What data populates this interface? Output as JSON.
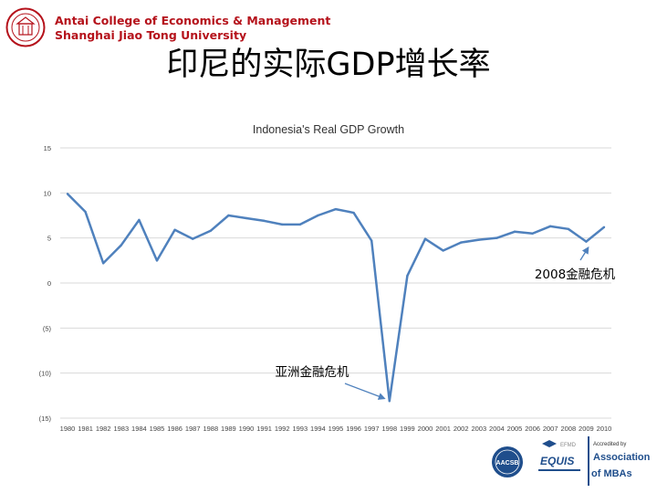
{
  "header": {
    "org_name_line1": "Antai College of Economics & Management",
    "org_name_line2": "Shanghai Jiao Tong University"
  },
  "slide_title": "印尼的实际GDP增长率",
  "colors": {
    "line": "#4f81bd",
    "arrow": "#4f81bd",
    "org_red": "#b5121b"
  },
  "chart_data": {
    "type": "line",
    "title": "Indonesia's Real GDP Growth",
    "xlabel": "",
    "ylabel": "",
    "categories": [
      "1980",
      "1981",
      "1982",
      "1983",
      "1984",
      "1985",
      "1986",
      "1987",
      "1988",
      "1989",
      "1990",
      "1991",
      "1992",
      "1993",
      "1994",
      "1995",
      "1996",
      "1997",
      "1998",
      "1999",
      "2000",
      "2001",
      "2002",
      "2003",
      "2004",
      "2005",
      "2006",
      "2007",
      "2008",
      "2009",
      "2010"
    ],
    "series": [
      {
        "values": [
          9.9,
          7.9,
          2.2,
          4.2,
          7.0,
          2.5,
          5.9,
          4.9,
          5.8,
          7.5,
          7.2,
          6.9,
          6.5,
          6.5,
          7.5,
          8.2,
          7.8,
          4.7,
          -13.1,
          0.8,
          4.9,
          3.6,
          4.5,
          4.8,
          5.0,
          5.7,
          5.5,
          6.3,
          6.0,
          4.6,
          6.2
        ]
      }
    ],
    "ylim": [
      -15,
      15
    ],
    "yticks": [
      15,
      10,
      5,
      0,
      -5,
      -10,
      -15
    ],
    "ytick_labels": [
      "15",
      "10",
      "5",
      "0",
      "(5)",
      "(10)",
      "(15)"
    ],
    "grid": true,
    "annotations": [
      {
        "text": "2008金融危机",
        "target_x": "2009",
        "target_y": 4.6
      },
      {
        "text": "亚洲金融危机",
        "target_x": "1998",
        "target_y": -13.1
      }
    ]
  },
  "footer": {
    "logo1_text": "AACSB",
    "logo2_text": "EQUIS",
    "logo2_sub": "EFMD",
    "logo3_line1": "Accredited by",
    "logo3_line2": "Association",
    "logo3_line3": "of MBAs"
  }
}
